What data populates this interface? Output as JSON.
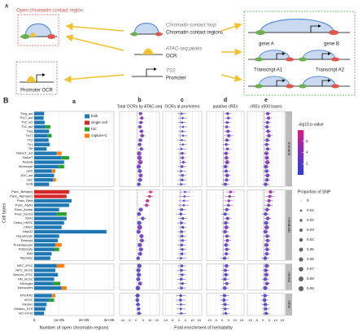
{
  "diagram": {
    "panel_label": "A",
    "open_region": "Open chromatin contact region",
    "loop": "Chromatin contact loop",
    "contact_regions": "Chromatin contact regions",
    "atac": "ATAC-seq peaks",
    "ocr": "OCR",
    "tss": "TSS",
    "promoter": "Promoter",
    "promoter_ocr": "Promoter OCR",
    "gene_a": "gene A",
    "gene_b": "gene B",
    "transcript_a1": "Transcript A1",
    "transcript_a2": "Transcript A2"
  },
  "figure": {
    "panel_label": "B",
    "y_label": "Cell types",
    "x_label": "Fold enrichment of heritability"
  },
  "chart_data": [
    {
      "type": "bar",
      "panel_label": "a",
      "x_label": "Number of open chromatin regions",
      "legend": "top-right",
      "xlim": [
        0,
        320000
      ],
      "xticks": [
        0,
        {
          "value": 100000,
          "label": "1e+05"
        },
        {
          "value": 200000,
          "label": "2e+05"
        },
        {
          "value": 300000,
          "label": "3e+05"
        }
      ],
      "facets": [
        {
          "label": "immune",
          "categories": [
            "Treg_act",
            "Th17_act",
            "Th2_act",
            "Th1_act",
            "Treg",
            "Th17",
            "Th2",
            "Th1",
            "Tfh",
            "NaiveT_act",
            "NaiveT",
            "NaiveB",
            "Monocyte",
            "pDC",
            "cDC_act",
            "cDC",
            "GCB"
          ]
        },
        {
          "label": "metabolic",
          "categories": [
            "Panc_Beta(sc)",
            "Panc_Alpha(sc)",
            "Panc_Beta",
            "Panc_Alpha",
            "Panc_Acinar",
            "Panc_Ductal",
            "Islets",
            "Osteo_hMSC",
            "hMSC",
            "HepG2",
            "Hepatocyte",
            "Enteroid",
            "PreAdipocyte",
            "Adipocyte",
            "SkM",
            "Myotube"
          ]
        },
        {
          "label": "neural",
          "categories": [
            "NPC_iPSC",
            "NPC_hESC",
            "Neuron_iPSC",
            "HN_hESC",
            "Microglia",
            "Astrocytes"
          ]
        },
        {
          "label": "other",
          "categories": [
            "NTERA2",
            "hESC",
            "Melano",
            "Melano_E1R",
            "NCI-H716"
          ]
        }
      ],
      "series": [
        {
          "name": "bulk",
          "color": "#1f77b4",
          "values": [
            40000,
            38000,
            42000,
            45000,
            60000,
            55000,
            58000,
            62000,
            50000,
            90000,
            110000,
            120000,
            95000,
            70000,
            80000,
            75000,
            60000,
            null,
            null,
            150000,
            140000,
            100000,
            90000,
            130000,
            120000,
            110000,
            290000,
            100000,
            95000,
            85000,
            80000,
            70000,
            65000,
            90000,
            85000,
            95000,
            80000,
            75000,
            110000,
            70000,
            60000,
            50000,
            45000,
            40000
          ]
        },
        {
          "name": "single cell",
          "color": "#d62728",
          "values": [
            null,
            null,
            null,
            null,
            null,
            null,
            null,
            null,
            null,
            null,
            null,
            null,
            null,
            null,
            null,
            null,
            null,
            140000,
            130000,
            null,
            null,
            null,
            null,
            null,
            null,
            null,
            null,
            null,
            null,
            null,
            null,
            null,
            null,
            null,
            null,
            null,
            null,
            null,
            null,
            null,
            null,
            null,
            null,
            null
          ]
        },
        {
          "name": "hiC",
          "color": "#2ca02c",
          "values": [
            null,
            null,
            null,
            20000,
            null,
            15000,
            null,
            null,
            null,
            null,
            30000,
            null,
            25000,
            null,
            null,
            null,
            null,
            null,
            null,
            null,
            null,
            null,
            40000,
            null,
            null,
            null,
            null,
            null,
            null,
            null,
            20000,
            null,
            null,
            null,
            null,
            null,
            null,
            30000,
            null,
            null,
            20000,
            null,
            null,
            null
          ]
        },
        {
          "name": "capture-C",
          "color": "#ff7f0e",
          "values": [
            null,
            null,
            null,
            null,
            null,
            null,
            null,
            null,
            null,
            20000,
            null,
            null,
            null,
            15000,
            null,
            12000,
            null,
            null,
            null,
            null,
            null,
            null,
            null,
            null,
            null,
            null,
            null,
            null,
            null,
            25000,
            null,
            null,
            null,
            30000,
            null,
            null,
            null,
            null,
            20000,
            15000,
            null,
            null,
            null,
            null
          ]
        }
      ]
    },
    {
      "type": "dot",
      "panel_label": "b",
      "title": "Total OCRs by ATAC-seq",
      "xlim": [
        -12,
        17
      ],
      "xticks": [
        -10,
        -5,
        0,
        5,
        10,
        15
      ],
      "reference_line": 1,
      "grid": true,
      "values": [
        3.2,
        4.1,
        3.5,
        2.8,
        3.9,
        4.4,
        3.1,
        2.6,
        3.8,
        2.2,
        2.5,
        3.0,
        1.9,
        2.7,
        3.3,
        2.9,
        2.0,
        10.5,
        9.8,
        8.2,
        7.6,
        3.4,
        2.1,
        4.8,
        2.3,
        2.6,
        1.8,
        3.9,
        4.2,
        2.7,
        3.5,
        2.9,
        1.5,
        2.4,
        1.7,
        2.0,
        1.6,
        2.9,
        1.3,
        1.1,
        0.9,
        1.4,
        1.8,
        2.2
      ],
      "errors": [
        1.5,
        2.0,
        1.8,
        1.6,
        1.7,
        2.1,
        1.5,
        1.4,
        2.2,
        1.1,
        1.2,
        1.4,
        1.3,
        1.6,
        1.5,
        1.7,
        1.4,
        2.5,
        2.8,
        2.0,
        2.3,
        1.8,
        1.6,
        2.4,
        1.9,
        1.3,
        1.2,
        1.8,
        2.1,
        1.5,
        1.9,
        1.7,
        1.4,
        1.6,
        1.8,
        1.5,
        1.7,
        1.3,
        1.2,
        1.9,
        1.6,
        1.8,
        1.7,
        2.0
      ],
      "neglog10p": [
        3.5,
        4.2,
        3.0,
        2.1,
        3.8,
        4.5,
        2.8,
        2.5,
        2.4,
        3.9,
        4.1,
        4.8,
        2.6,
        2.2,
        3.6,
        3.1,
        1.8,
        7.8,
        7.2,
        6.5,
        5.9,
        2.4,
        1.7,
        3.2,
        1.6,
        3.8,
        2.4,
        3.1,
        3.3,
        2.7,
        2.9,
        2.3,
        1.5,
        2.0,
        1.3,
        1.7,
        1.5,
        3.2,
        1.4,
        0.8,
        0.9,
        1.1,
        1.2,
        1.3
      ],
      "proportion": [
        0.03,
        0.03,
        0.03,
        0.03,
        0.04,
        0.04,
        0.04,
        0.04,
        0.03,
        0.06,
        0.07,
        0.07,
        0.06,
        0.05,
        0.05,
        0.05,
        0.04,
        0.02,
        0.02,
        0.03,
        0.03,
        0.05,
        0.05,
        0.04,
        0.06,
        0.08,
        0.06,
        0.05,
        0.05,
        0.06,
        0.05,
        0.05,
        0.04,
        0.06,
        0.05,
        0.06,
        0.05,
        0.05,
        0.07,
        0.05,
        0.04,
        0.04,
        0.03,
        0.03
      ]
    },
    {
      "type": "dot",
      "panel_label": "c",
      "title": "OCRs at promoters",
      "xlim": [
        -12,
        17
      ],
      "xticks": [
        -10,
        -5,
        0,
        5,
        10,
        15
      ],
      "reference_line": 1,
      "grid": true,
      "values": [
        2.1,
        2.8,
        2.4,
        3.0,
        2.6,
        3.1,
        2.2,
        2.9,
        2.0,
        2.5,
        2.7,
        3.2,
        2.3,
        1.8,
        2.6,
        2.4,
        1.9,
        4.5,
        4.1,
        3.8,
        3.6,
        2.2,
        1.5,
        2.9,
        1.9,
        2.8,
        2.0,
        2.4,
        2.6,
        2.1,
        2.5,
        2.3,
        1.7,
        2.2,
        1.9,
        2.4,
        1.8,
        2.6,
        2.0,
        1.4,
        1.2,
        1.6,
        1.5,
        1.9
      ],
      "errors": [
        3.0,
        3.2,
        2.9,
        3.1,
        2.8,
        3.3,
        3.0,
        2.7,
        3.4,
        2.6,
        2.5,
        2.7,
        3.1,
        3.5,
        2.9,
        3.0,
        3.2,
        4.0,
        4.2,
        3.8,
        3.9,
        3.1,
        3.6,
        3.3,
        3.4,
        2.6,
        3.2,
        3.0,
        2.9,
        3.1,
        2.8,
        3.0,
        3.5,
        3.0,
        3.2,
        2.9,
        3.3,
        2.8,
        3.1,
        3.6,
        3.7,
        3.4,
        3.5,
        3.3
      ],
      "neglog10p": [
        2.0,
        2.5,
        2.1,
        2.6,
        2.3,
        2.8,
        1.9,
        2.4,
        1.6,
        2.7,
        2.9,
        3.1,
        2.0,
        1.4,
        2.2,
        2.1,
        1.5,
        3.4,
        3.1,
        2.9,
        2.7,
        1.8,
        1.1,
        2.3,
        1.4,
        2.8,
        1.7,
        2.0,
        2.2,
        1.8,
        2.1,
        1.9,
        1.3,
        2.0,
        1.6,
        2.1,
        1.5,
        2.3,
        1.7,
        1.0,
        0.9,
        1.1,
        1.0,
        1.3
      ],
      "proportion": [
        0.01,
        0.01,
        0.01,
        0.01,
        0.01,
        0.01,
        0.01,
        0.01,
        0.01,
        0.02,
        0.02,
        0.02,
        0.02,
        0.01,
        0.02,
        0.02,
        0.01,
        0.01,
        0.01,
        0.01,
        0.01,
        0.02,
        0.02,
        0.02,
        0.02,
        0.02,
        0.02,
        0.02,
        0.02,
        0.02,
        0.02,
        0.02,
        0.01,
        0.02,
        0.02,
        0.02,
        0.02,
        0.02,
        0.02,
        0.02,
        0.02,
        0.01,
        0.01,
        0.01
      ]
    },
    {
      "type": "dot",
      "panel_label": "d",
      "title": "putative cREs",
      "xlim": [
        -12,
        17
      ],
      "xticks": [
        -10,
        -5,
        0,
        5,
        10,
        15
      ],
      "reference_line": 1,
      "grid": true,
      "values": [
        4.2,
        4.8,
        3.9,
        3.5,
        4.5,
        5.1,
        3.7,
        3.2,
        4.0,
        3.0,
        3.3,
        3.8,
        2.6,
        3.1,
        3.9,
        3.4,
        2.5,
        6.5,
        5.8,
        5.2,
        4.9,
        3.6,
        2.4,
        4.1,
        2.8,
        3.2,
        2.3,
        3.7,
        4.0,
        3.0,
        3.6,
        3.2,
        2.0,
        3.3,
        2.5,
        2.9,
        2.2,
        3.5,
        2.1,
        1.9,
        1.5,
        2.2,
        2.4,
        2.8
      ],
      "errors": [
        2.8,
        3.1,
        2.9,
        3.0,
        2.7,
        3.2,
        2.9,
        2.8,
        3.3,
        2.2,
        2.1,
        2.4,
        2.6,
        3.0,
        2.7,
        2.8,
        3.1,
        3.6,
        3.9,
        3.4,
        3.5,
        2.9,
        3.2,
        3.1,
        3.0,
        2.3,
        2.8,
        2.9,
        3.0,
        2.7,
        2.8,
        2.9,
        3.3,
        2.7,
        3.0,
        2.8,
        3.1,
        2.6,
        2.9,
        3.4,
        3.5,
        3.2,
        3.3,
        3.1
      ],
      "neglog10p": [
        3.1,
        3.6,
        2.9,
        2.5,
        3.4,
        3.9,
        2.7,
        2.3,
        2.6,
        3.3,
        3.5,
        4.0,
        2.2,
        2.0,
        3.2,
        2.8,
        1.7,
        5.2,
        4.8,
        4.3,
        4.0,
        2.6,
        1.5,
        3.0,
        1.8,
        3.4,
        2.0,
        2.8,
        3.0,
        2.4,
        2.7,
        2.3,
        1.4,
        2.5,
        1.7,
        2.2,
        1.6,
        2.8,
        1.6,
        1.2,
        1.0,
        1.3,
        1.4,
        1.6
      ],
      "proportion": [
        0.02,
        0.02,
        0.02,
        0.02,
        0.03,
        0.03,
        0.03,
        0.02,
        0.02,
        0.04,
        0.04,
        0.05,
        0.04,
        0.03,
        0.04,
        0.03,
        0.03,
        0.02,
        0.02,
        0.02,
        0.02,
        0.03,
        0.03,
        0.03,
        0.04,
        0.05,
        0.04,
        0.03,
        0.03,
        0.04,
        0.03,
        0.03,
        0.03,
        0.04,
        0.03,
        0.04,
        0.03,
        0.03,
        0.04,
        0.03,
        0.03,
        0.03,
        0.02,
        0.02
      ]
    },
    {
      "type": "dot",
      "panel_label": "e",
      "title": "cREs ±500 bases",
      "xlim": [
        -12,
        17
      ],
      "xticks": [
        -10,
        -5,
        0,
        5,
        10,
        15
      ],
      "reference_line": 1,
      "grid": true,
      "values": [
        3.8,
        4.4,
        3.6,
        3.2,
        4.1,
        4.7,
        3.4,
        3.0,
        3.7,
        2.8,
        3.1,
        3.5,
        2.4,
        2.9,
        3.6,
        3.2,
        2.3,
        6.0,
        5.4,
        4.8,
        4.5,
        3.3,
        2.2,
        3.8,
        2.6,
        3.0,
        2.1,
        3.4,
        3.7,
        2.8,
        3.3,
        3.0,
        1.9,
        3.0,
        2.3,
        2.7,
        2.0,
        3.2,
        1.9,
        1.7,
        1.4,
        2.0,
        2.2,
        2.6
      ],
      "errors": [
        2.4,
        2.7,
        2.5,
        2.6,
        2.3,
        2.8,
        2.5,
        2.4,
        2.9,
        1.9,
        1.8,
        2.1,
        2.3,
        2.6,
        2.3,
        2.4,
        2.7,
        3.2,
        3.5,
        3.0,
        3.1,
        2.5,
        2.8,
        2.7,
        2.6,
        2.0,
        2.4,
        2.5,
        2.6,
        2.3,
        2.4,
        2.5,
        2.9,
        2.3,
        2.6,
        2.4,
        2.7,
        2.2,
        2.5,
        3.0,
        3.1,
        2.8,
        2.9,
        2.7
      ],
      "neglog10p": [
        3.3,
        3.8,
        3.1,
        2.7,
        3.6,
        4.1,
        2.9,
        2.5,
        2.8,
        3.5,
        3.7,
        4.2,
        2.4,
        2.1,
        3.4,
        3.0,
        1.8,
        5.5,
        5.1,
        4.6,
        4.2,
        2.8,
        1.6,
        3.2,
        1.9,
        3.6,
        2.2,
        3.0,
        3.2,
        2.6,
        2.9,
        2.5,
        1.5,
        2.7,
        1.8,
        2.4,
        1.7,
        3.0,
        1.7,
        1.3,
        1.1,
        1.4,
        1.5,
        1.7
      ],
      "proportion": [
        0.03,
        0.03,
        0.03,
        0.03,
        0.04,
        0.04,
        0.04,
        0.03,
        0.03,
        0.05,
        0.05,
        0.06,
        0.05,
        0.04,
        0.05,
        0.04,
        0.04,
        0.03,
        0.03,
        0.03,
        0.03,
        0.04,
        0.04,
        0.04,
        0.05,
        0.06,
        0.05,
        0.04,
        0.04,
        0.05,
        0.04,
        0.04,
        0.04,
        0.05,
        0.04,
        0.05,
        0.04,
        0.04,
        0.05,
        0.04,
        0.04,
        0.04,
        0.03,
        0.03
      ]
    }
  ],
  "color_scale": {
    "title": "-log10 p-value",
    "lim": [
      0,
      8
    ],
    "ticks": [
      2,
      4,
      6
    ],
    "colors": [
      "#2b3fd6",
      "#7a2fb8",
      "#d61f7a"
    ]
  },
  "size_scale": {
    "title": "Proportion of SNP",
    "values": [
      0,
      0.01,
      0.02,
      0.03,
      0.04,
      0.05,
      0.06,
      0.07,
      0.08,
      0.09
    ]
  }
}
